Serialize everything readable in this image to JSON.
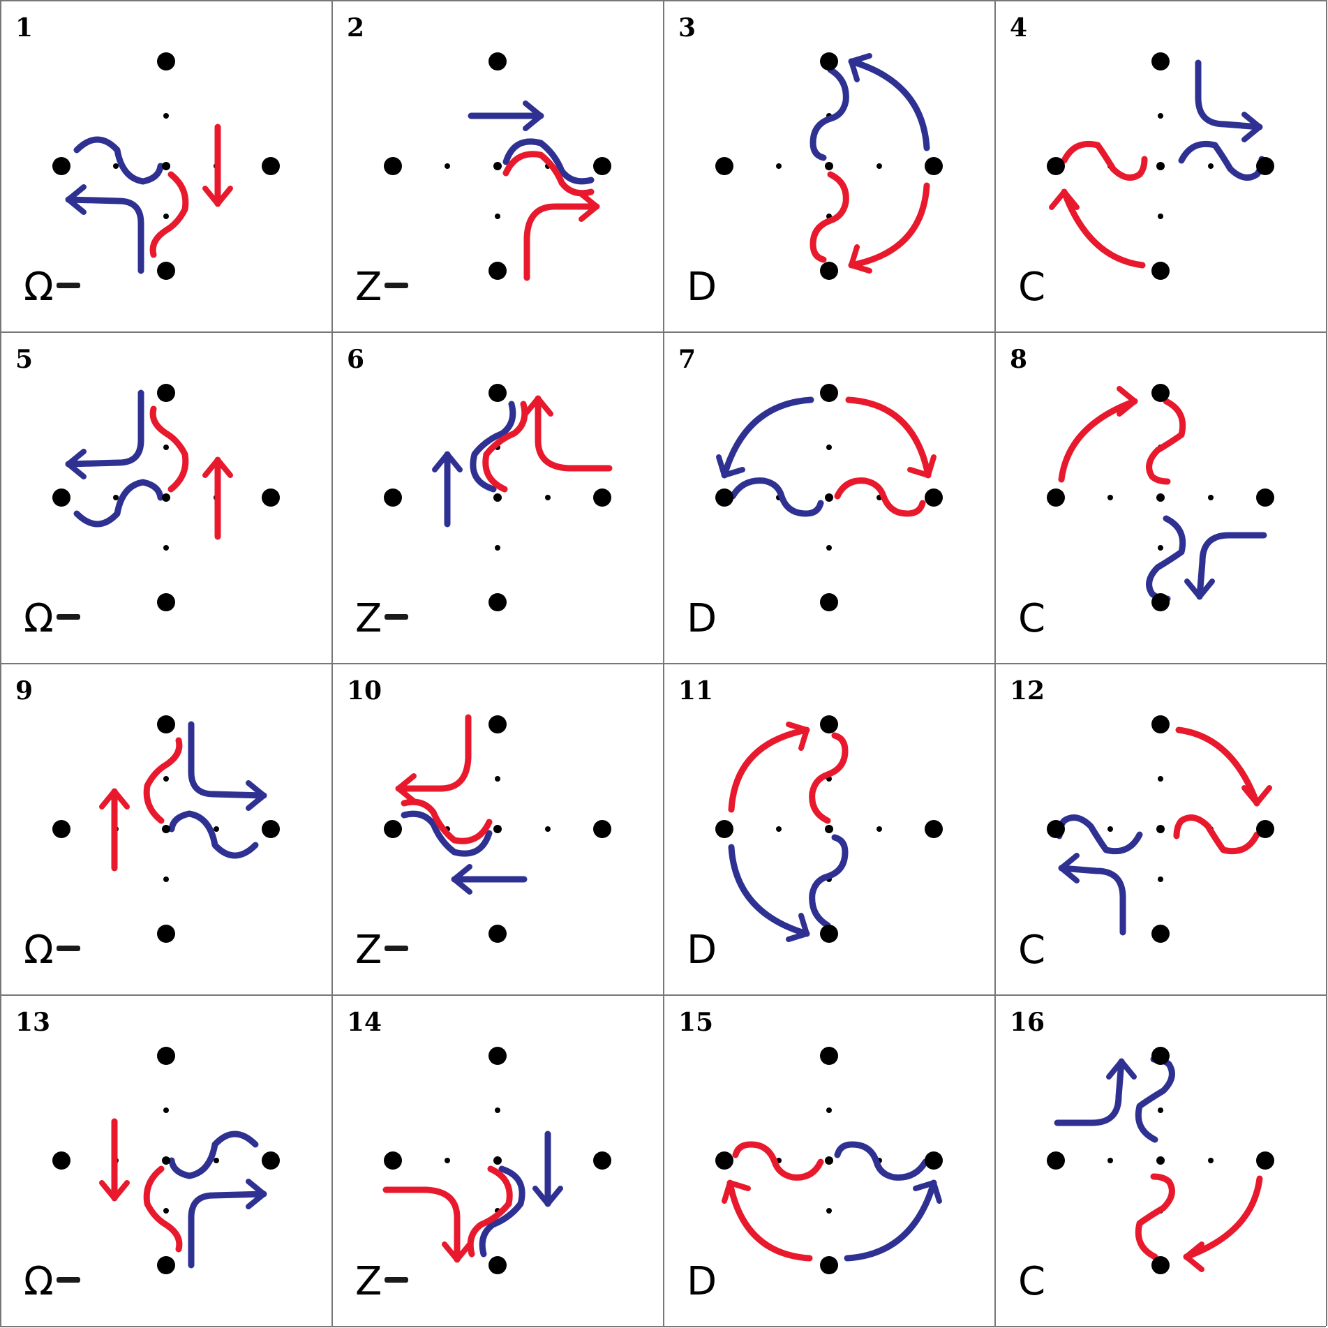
{
  "colors": {
    "red": "#e8192c",
    "blue": "#2e3192",
    "dot": "#000000",
    "grid": "#777777"
  },
  "cells": [
    {
      "number": "1",
      "label": "Ω",
      "dash": true,
      "pattern": "omega",
      "rot": 0,
      "flip": false
    },
    {
      "number": "2",
      "label": "Z",
      "dash": true,
      "pattern": "z",
      "rot": 0,
      "flip": false
    },
    {
      "number": "3",
      "label": "D",
      "dash": false,
      "pattern": "d",
      "rot": 0,
      "flip": false
    },
    {
      "number": "4",
      "label": "C",
      "dash": false,
      "pattern": "c",
      "rot": 0,
      "flip": false
    },
    {
      "number": "5",
      "label": "Ω",
      "dash": true,
      "pattern": "omega",
      "rot": 180,
      "flip": true
    },
    {
      "number": "6",
      "label": "Z",
      "dash": true,
      "pattern": "z",
      "rot": 270,
      "flip": false
    },
    {
      "number": "7",
      "label": "D",
      "dash": false,
      "pattern": "d",
      "rot": 270,
      "flip": false
    },
    {
      "number": "8",
      "label": "C",
      "dash": false,
      "pattern": "c",
      "rot": 90,
      "flip": false
    },
    {
      "number": "9",
      "label": "Ω",
      "dash": true,
      "pattern": "omega",
      "rot": 180,
      "flip": false
    },
    {
      "number": "10",
      "label": "Z",
      "dash": true,
      "pattern": "z",
      "rot": 180,
      "flip": false
    },
    {
      "number": "11",
      "label": "D",
      "dash": false,
      "pattern": "d",
      "rot": 180,
      "flip": false
    },
    {
      "number": "12",
      "label": "C",
      "dash": false,
      "pattern": "c",
      "rot": 180,
      "flip": false
    },
    {
      "number": "13",
      "label": "Ω",
      "dash": true,
      "pattern": "omega",
      "rot": 0,
      "flip": true
    },
    {
      "number": "14",
      "label": "Z",
      "dash": true,
      "pattern": "z",
      "rot": 90,
      "flip": false
    },
    {
      "number": "15",
      "label": "D",
      "dash": false,
      "pattern": "d",
      "rot": 90,
      "flip": false
    },
    {
      "number": "16",
      "label": "C",
      "dash": false,
      "pattern": "c",
      "rot": 270,
      "flip": false
    }
  ]
}
